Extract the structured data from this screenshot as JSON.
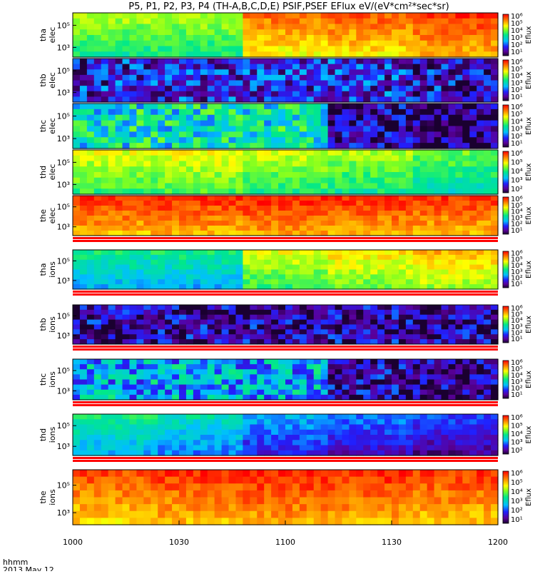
{
  "title": "P5, P1, P2, P3, P4 (TH-A,B,C,D,E) PSIF,PSEF EFlux eV/(eV*cm²*sec*sr)",
  "time_axis": {
    "label_line1": "hhmm",
    "label_line2": "2013 May 12",
    "ticks": [
      "1000",
      "1030",
      "1100",
      "1130",
      "1200"
    ]
  },
  "colorbar_title": "Eflux",
  "panels": [
    {
      "probe": "tha",
      "species": "elec",
      "y_ticks": [
        "10⁵",
        "10³"
      ],
      "cb_ticks": [
        "10⁶",
        "10⁵",
        "10⁴",
        "10³",
        "10²",
        "10¹"
      ]
    },
    {
      "probe": "thb",
      "species": "elec",
      "y_ticks": [
        "10⁵",
        "10³"
      ],
      "cb_ticks": [
        "10⁶",
        "10⁵",
        "10⁴",
        "10³",
        "10²",
        "10¹"
      ]
    },
    {
      "probe": "thc",
      "species": "elec",
      "y_ticks": [
        "10⁵",
        "10³"
      ],
      "cb_ticks": [
        "10⁶",
        "10⁵",
        "10⁴",
        "10³",
        "10²",
        "10¹"
      ]
    },
    {
      "probe": "thd",
      "species": "elec",
      "y_ticks": [
        "10⁵",
        "10³"
      ],
      "cb_ticks": [
        "10⁶",
        "10⁵",
        "10⁴",
        "10³",
        "10²"
      ]
    },
    {
      "probe": "the",
      "species": "elec",
      "y_ticks": [
        "10⁵",
        "10³"
      ],
      "cb_ticks": [
        "10⁶",
        "10⁵",
        "10⁴",
        "10³",
        "10²",
        "10¹"
      ]
    },
    {
      "probe": "tha",
      "species": "ions",
      "y_ticks": [
        "10⁵",
        "10³"
      ],
      "cb_ticks": [
        "10⁶",
        "10⁵",
        "10⁴",
        "10³",
        "10²",
        "10¹"
      ]
    },
    {
      "probe": "thb",
      "species": "ions",
      "y_ticks": [
        "10⁵",
        "10³"
      ],
      "cb_ticks": [
        "10⁶",
        "10⁵",
        "10⁴",
        "10³",
        "10²",
        "10¹"
      ]
    },
    {
      "probe": "thc",
      "species": "ions",
      "y_ticks": [
        "10⁵",
        "10³"
      ],
      "cb_ticks": [
        "10⁶",
        "10⁵",
        "10⁴",
        "10³",
        "10²",
        "10¹"
      ]
    },
    {
      "probe": "thd",
      "species": "ions",
      "y_ticks": [
        "10⁵",
        "10³"
      ],
      "cb_ticks": [
        "10⁶",
        "10⁵",
        "10⁴",
        "10³",
        "10²"
      ]
    },
    {
      "probe": "the",
      "species": "ions",
      "y_ticks": [
        "10⁵",
        "10³"
      ],
      "cb_ticks": [
        "10⁶",
        "10⁵",
        "10⁴",
        "10³",
        "10²",
        "10¹"
      ]
    }
  ],
  "chart_data": {
    "type": "heatmap",
    "title": "P5, P1, P2, P3, P4 (TH-A,B,C,D,E) PSIF,PSEF EFlux eV/(eV*cm²*sec*sr)",
    "x_ticks": [
      "1000",
      "1030",
      "1100",
      "1130",
      "1200"
    ],
    "xlabel": "hhmm 2013 May 12",
    "z_label": "Eflux",
    "colormap": "rainbow",
    "series": [
      {
        "name": "tha elec",
        "mean_level_by_half_hour": [
          0.66,
          0.66,
          0.88,
          0.9,
          0.95
        ]
      },
      {
        "name": "thb elec",
        "mean_level_by_half_hour": [
          0.18,
          0.2,
          0.2,
          0.2,
          0.15
        ]
      },
      {
        "name": "thc elec",
        "mean_level_by_half_hour": [
          0.45,
          0.45,
          0.45,
          0.1,
          0.05
        ]
      },
      {
        "name": "thd elec",
        "mean_level_by_half_hour": [
          0.7,
          0.72,
          0.68,
          0.65,
          0.6
        ]
      },
      {
        "name": "the elec",
        "mean_level_by_half_hour": [
          0.95,
          0.96,
          0.97,
          0.96,
          0.95
        ]
      },
      {
        "name": "tha ions",
        "mean_level_by_half_hour": [
          0.5,
          0.5,
          0.7,
          0.75,
          0.8
        ]
      },
      {
        "name": "thb ions",
        "mean_level_by_half_hour": [
          0.12,
          0.12,
          0.12,
          0.12,
          0.1
        ]
      },
      {
        "name": "thc ions",
        "mean_level_by_half_hour": [
          0.35,
          0.35,
          0.35,
          0.12,
          0.08
        ]
      },
      {
        "name": "thd ions",
        "mean_level_by_half_hour": [
          0.5,
          0.45,
          0.35,
          0.3,
          0.25
        ]
      },
      {
        "name": "the ions",
        "mean_level_by_half_hour": [
          0.92,
          0.95,
          0.97,
          0.96,
          0.94
        ]
      }
    ]
  }
}
